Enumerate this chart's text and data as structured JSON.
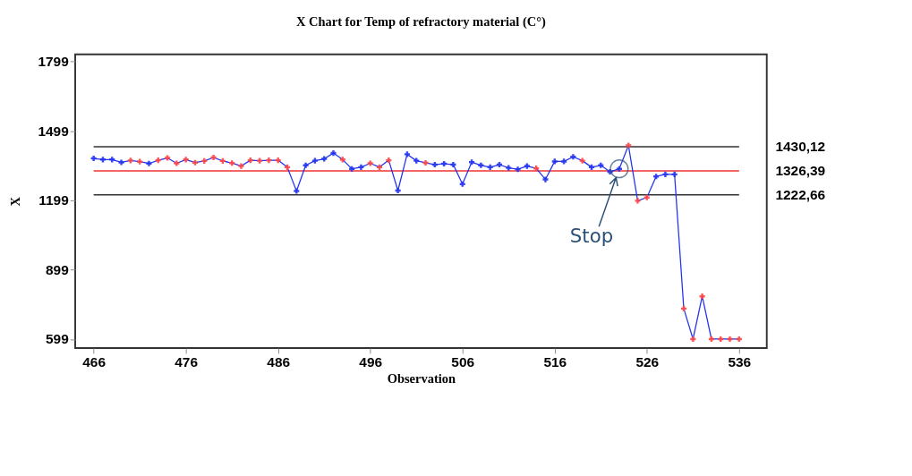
{
  "chart_data": {
    "type": "line",
    "title": "X Chart for Temp of refractory material (C°)",
    "xlabel": "Observation",
    "ylabel": "X",
    "x": [
      466,
      467,
      468,
      469,
      470,
      471,
      472,
      473,
      474,
      475,
      476,
      477,
      478,
      479,
      480,
      481,
      482,
      483,
      484,
      485,
      486,
      487,
      488,
      489,
      490,
      491,
      492,
      493,
      494,
      495,
      496,
      497,
      498,
      499,
      500,
      501,
      502,
      503,
      504,
      505,
      506,
      507,
      508,
      509,
      510,
      511,
      512,
      513,
      514,
      515,
      516,
      517,
      518,
      519,
      520,
      521,
      522,
      523,
      524,
      525,
      526,
      527,
      528,
      529,
      530,
      531,
      532,
      533,
      534,
      535,
      536
    ],
    "series": [
      {
        "color": "#2233ee",
        "marker": "cross",
        "values": [
          1380,
          1375,
          1375,
          1363,
          1371,
          1366,
          1358,
          1372,
          1382,
          1359,
          1375,
          1362,
          1369,
          1384,
          1369,
          1360,
          1347,
          1372,
          1370,
          1372,
          1372,
          1342,
          1239,
          1350,
          1370,
          1378,
          1403,
          1375,
          1335,
          1342,
          1359,
          1342,
          1372,
          1241,
          1398,
          1370,
          1361,
          1353,
          1357,
          1353,
          1269,
          1364,
          1350,
          1342,
          1353,
          1339,
          1333,
          1347,
          1337,
          1289,
          1367,
          1367,
          1387,
          1370,
          1342,
          1350,
          1322,
          1335,
          1436,
          1197,
          1211,
          1302,
          1311,
          1311,
          731,
          599,
          784,
          599,
          599,
          599,
          599
        ],
        "colors": [
          "#2233ee",
          "#2233ee",
          "#2233ee",
          "#2233ee",
          "#ff4444",
          "#ff4444",
          "#2233ee",
          "#ff4444",
          "#ff4444",
          "#ff4444",
          "#ff4444",
          "#ff4444",
          "#ff4444",
          "#ff4444",
          "#ff4444",
          "#ff4444",
          "#ff4444",
          "#ff4444",
          "#ff4444",
          "#ff4444",
          "#ff4444",
          "#ff4444",
          "#2233ee",
          "#2233ee",
          "#2233ee",
          "#2233ee",
          "#2233ee",
          "#ff4444",
          "#2233ee",
          "#2233ee",
          "#ff4444",
          "#ff4444",
          "#ff4444",
          "#2233ee",
          "#2233ee",
          "#2233ee",
          "#ff4444",
          "#2233ee",
          "#2233ee",
          "#2233ee",
          "#2233ee",
          "#2233ee",
          "#2233ee",
          "#2233ee",
          "#2233ee",
          "#2233ee",
          "#2233ee",
          "#2233ee",
          "#ff4444",
          "#2233ee",
          "#2233ee",
          "#2233ee",
          "#2233ee",
          "#ff4444",
          "#2233ee",
          "#2233ee",
          "#2233ee",
          "#2233ee",
          "#ff4444",
          "#ff4444",
          "#ff4444",
          "#2233ee",
          "#2233ee",
          "#2233ee",
          "#ff4444",
          "#ff4444",
          "#ff4444",
          "#ff4444",
          "#ff4444",
          "#ff4444",
          "#ff4444"
        ]
      }
    ],
    "xlim": [
      464,
      539
    ],
    "xticks": [
      466,
      476,
      486,
      496,
      506,
      516,
      526,
      536
    ],
    "ylim": [
      560,
      1830
    ],
    "yticks": [
      599,
      899,
      1199,
      1499,
      1799
    ],
    "ref_lines": [
      {
        "axis": "y",
        "value": 1430.12,
        "label": "1430,12",
        "color": "#333333"
      },
      {
        "axis": "y",
        "value": 1326.39,
        "label": "1326,39",
        "color": "#ee3333"
      },
      {
        "axis": "y",
        "value": 1222.66,
        "label": "1222,66",
        "color": "#333333"
      }
    ],
    "annotations": [
      {
        "text": "Stop",
        "x": 523,
        "y": 1335
      }
    ],
    "grid": false
  }
}
